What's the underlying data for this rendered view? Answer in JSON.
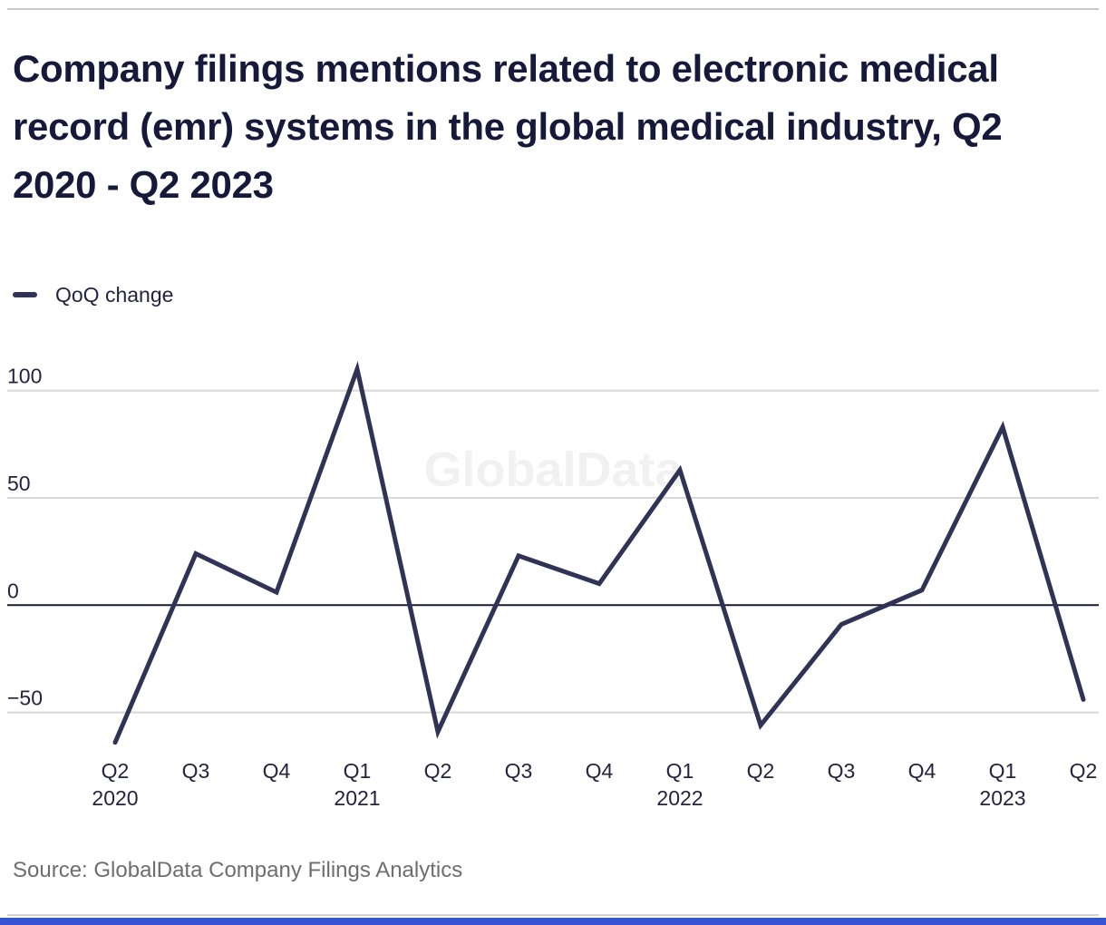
{
  "page": {
    "title": "Company filings mentions related to electronic medical record (emr) systems in the global medical industry, Q2 2020 - Q2 2023",
    "source": "Source: GlobalData Company Filings Analytics",
    "watermark": "GlobalData"
  },
  "legend": {
    "label": "QoQ change"
  },
  "colors": {
    "line": "#303256",
    "zero_line": "#181a30",
    "grid": "#d8d8d8",
    "title": "#17193a",
    "tick": "#222440",
    "source": "#6e6e6e",
    "watermark": "#f1f1f1",
    "top_rule": "#c8c8c8",
    "bottom_rule": "#d2d2d2",
    "bottom_bar": "#3654d1"
  },
  "chart_data": {
    "type": "line",
    "title": "Company filings mentions related to electronic medical record (emr) systems in the global medical industry, Q2 2020 - Q2 2023",
    "categories": [
      "Q2",
      "Q3",
      "Q4",
      "Q1",
      "Q2",
      "Q3",
      "Q4",
      "Q1",
      "Q2",
      "Q3",
      "Q4",
      "Q1",
      "Q2"
    ],
    "year_labels": [
      {
        "index": 0,
        "year": "2020"
      },
      {
        "index": 3,
        "year": "2021"
      },
      {
        "index": 7,
        "year": "2022"
      },
      {
        "index": 11,
        "year": "2023"
      }
    ],
    "series": [
      {
        "name": "QoQ change",
        "values": [
          -64,
          24,
          6,
          110,
          -59,
          23,
          10,
          63,
          -56,
          -9,
          7,
          83,
          -44
        ]
      }
    ],
    "y_ticks": [
      {
        "label": "100",
        "value": 100
      },
      {
        "label": "50",
        "value": 50
      },
      {
        "label": "0",
        "value": 0
      },
      {
        "label": "−50",
        "value": -50
      }
    ],
    "ylim": [
      -75,
      115
    ],
    "xlabel": "",
    "ylabel": "",
    "grid": "horizontal",
    "legend_position": "top-left"
  }
}
